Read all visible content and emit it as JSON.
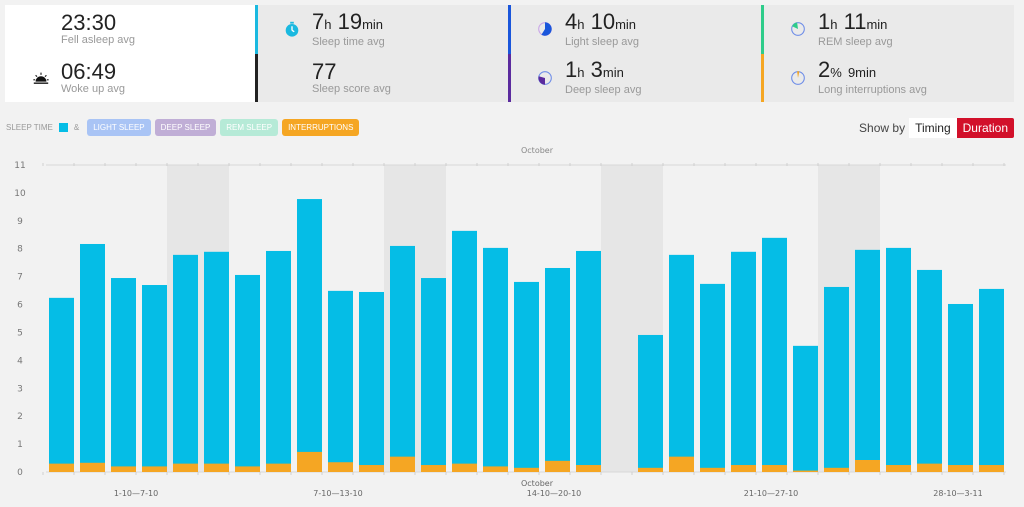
{
  "stats": {
    "fell_asleep": {
      "value": "23:30",
      "label": "Fell asleep avg",
      "icon": "moon-icon"
    },
    "woke_up": {
      "value": "06:49",
      "label": "Woke up avg",
      "icon": "sunrise-icon"
    },
    "sleep_time": {
      "h": "7",
      "h_unit": "h",
      "m": "19",
      "m_unit": "min",
      "label": "Sleep time avg",
      "icon": "stopwatch-icon",
      "color": "#1ab9e0"
    },
    "sleep_score": {
      "value": "77",
      "label": "Sleep score avg",
      "color": "#222222"
    },
    "light_sleep": {
      "h": "4",
      "h_unit": "h",
      "m": "10",
      "m_unit": "min",
      "label": "Light sleep avg",
      "icon": "light-sleep-pie-icon",
      "color": "#1a56db"
    },
    "deep_sleep": {
      "h": "1",
      "h_unit": "h",
      "m": "3",
      "m_unit": "min",
      "label": "Deep sleep avg",
      "icon": "deep-sleep-pie-icon",
      "color": "#5b2b9e"
    },
    "rem_sleep": {
      "h": "1",
      "h_unit": "h",
      "m": "11",
      "m_unit": "min",
      "label": "REM sleep avg",
      "icon": "rem-sleep-pie-icon",
      "color": "#2ecc8a"
    },
    "interruptions": {
      "pct": "2",
      "pct_unit": "%",
      "m": "9min",
      "label": "Long interruptions avg",
      "icon": "interruptions-pie-icon",
      "color": "#f5a623"
    }
  },
  "legend": {
    "sleep_time": "SLEEP TIME",
    "amp": "&",
    "pills": [
      {
        "label": "LIGHT SLEEP",
        "color": "#a9c4f5"
      },
      {
        "label": "DEEP SLEEP",
        "color": "#c0aed6"
      },
      {
        "label": "REM SLEEP",
        "color": "#b6ead7"
      },
      {
        "label": "INTERRUPTIONS",
        "color": "#f5a623"
      }
    ]
  },
  "show_by": {
    "label": "Show by",
    "options": [
      "Timing",
      "Duration"
    ],
    "selected": "Duration"
  },
  "chart_data": {
    "type": "bar",
    "stacked": true,
    "title": "",
    "top_label": "October",
    "xlabel": "October",
    "ylabel": "",
    "ylim": [
      0,
      11
    ],
    "yticks": [
      0,
      1,
      2,
      3,
      4,
      5,
      6,
      7,
      8,
      9,
      10,
      11
    ],
    "grid": false,
    "week_labels": [
      "1-10—7-10",
      "7-10—13-10",
      "14-10—20-10",
      "21-10—27-10",
      "28-10—3-11"
    ],
    "days": 31,
    "weekend_days": [
      5,
      6,
      12,
      13,
      19,
      20,
      26,
      27
    ],
    "series": [
      {
        "name": "Sleep time",
        "color": "#05bde6",
        "values": [
          6.24,
          8.17,
          6.95,
          6.7,
          7.78,
          7.89,
          7.06,
          7.92,
          9.78,
          6.49,
          6.45,
          8.1,
          6.95,
          8.64,
          8.03,
          6.81,
          7.31,
          7.92,
          null,
          4.91,
          7.78,
          6.74,
          7.89,
          8.39,
          4.52,
          6.63,
          7.96,
          8.03,
          7.24,
          6.02,
          6.56
        ]
      },
      {
        "name": "Interruptions",
        "color": "#f5a623",
        "values": [
          0.3,
          0.33,
          0.2,
          0.2,
          0.3,
          0.3,
          0.2,
          0.3,
          0.72,
          0.35,
          0.25,
          0.55,
          0.25,
          0.3,
          0.2,
          0.15,
          0.4,
          0.25,
          null,
          0.15,
          0.55,
          0.15,
          0.25,
          0.25,
          0.05,
          0.15,
          0.43,
          0.25,
          0.3,
          0.25,
          0.25
        ]
      }
    ]
  }
}
